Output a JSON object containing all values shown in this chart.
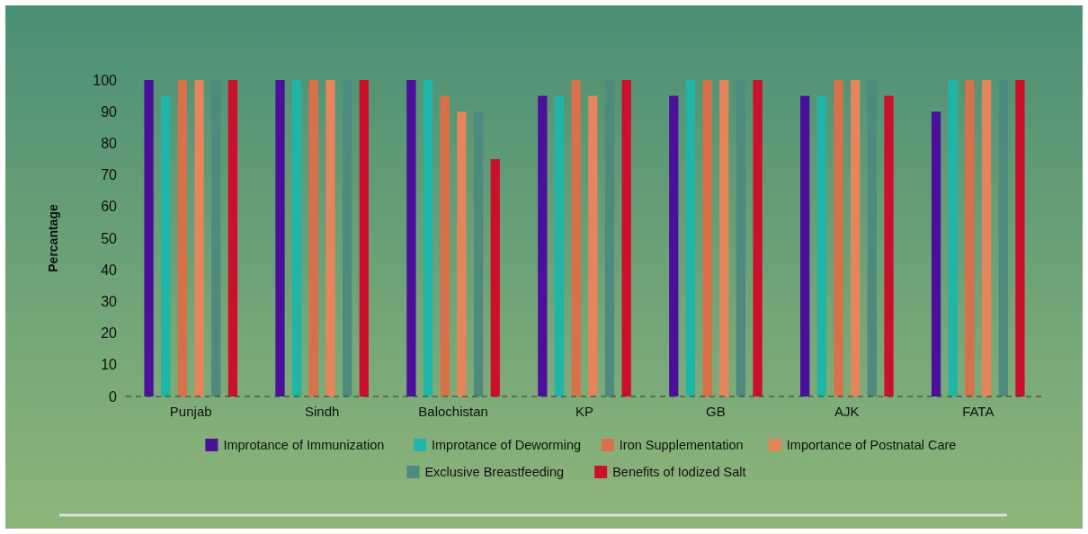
{
  "chart_data": {
    "type": "bar",
    "ylabel": "Percantage",
    "categories": [
      "Punjab",
      "Sindh",
      "Balochistan",
      "KP",
      "GB",
      "AJK",
      "FATA"
    ],
    "series": [
      {
        "name": "Improtance of Immunization",
        "color": "#4b0f9c",
        "values": [
          100,
          100,
          100,
          95,
          95,
          95,
          90
        ]
      },
      {
        "name": "Improtance of Deworming",
        "color": "#1fb5a8",
        "values": [
          95,
          100,
          100,
          95,
          100,
          95,
          100
        ]
      },
      {
        "name": "Iron Supplementation",
        "color": "#d9704a",
        "values": [
          100,
          100,
          95,
          100,
          100,
          100,
          100
        ]
      },
      {
        "name": "Importance of Postnatal Care",
        "color": "#e6855c",
        "values": [
          100,
          100,
          90,
          95,
          100,
          100,
          100
        ]
      },
      {
        "name": "Exclusive Breastfeeding",
        "color": "#4f8a7e",
        "values": [
          100,
          100,
          90,
          100,
          100,
          100,
          100
        ]
      },
      {
        "name": "Benefits of Iodized Salt",
        "color": "#cc0f2a",
        "values": [
          100,
          100,
          75,
          100,
          100,
          95,
          100
        ]
      }
    ],
    "ylim": [
      0,
      100
    ],
    "yticks": [
      0,
      10,
      20,
      30,
      40,
      50,
      60,
      70,
      80,
      90,
      100
    ],
    "grid": false,
    "legend": "bottom"
  }
}
